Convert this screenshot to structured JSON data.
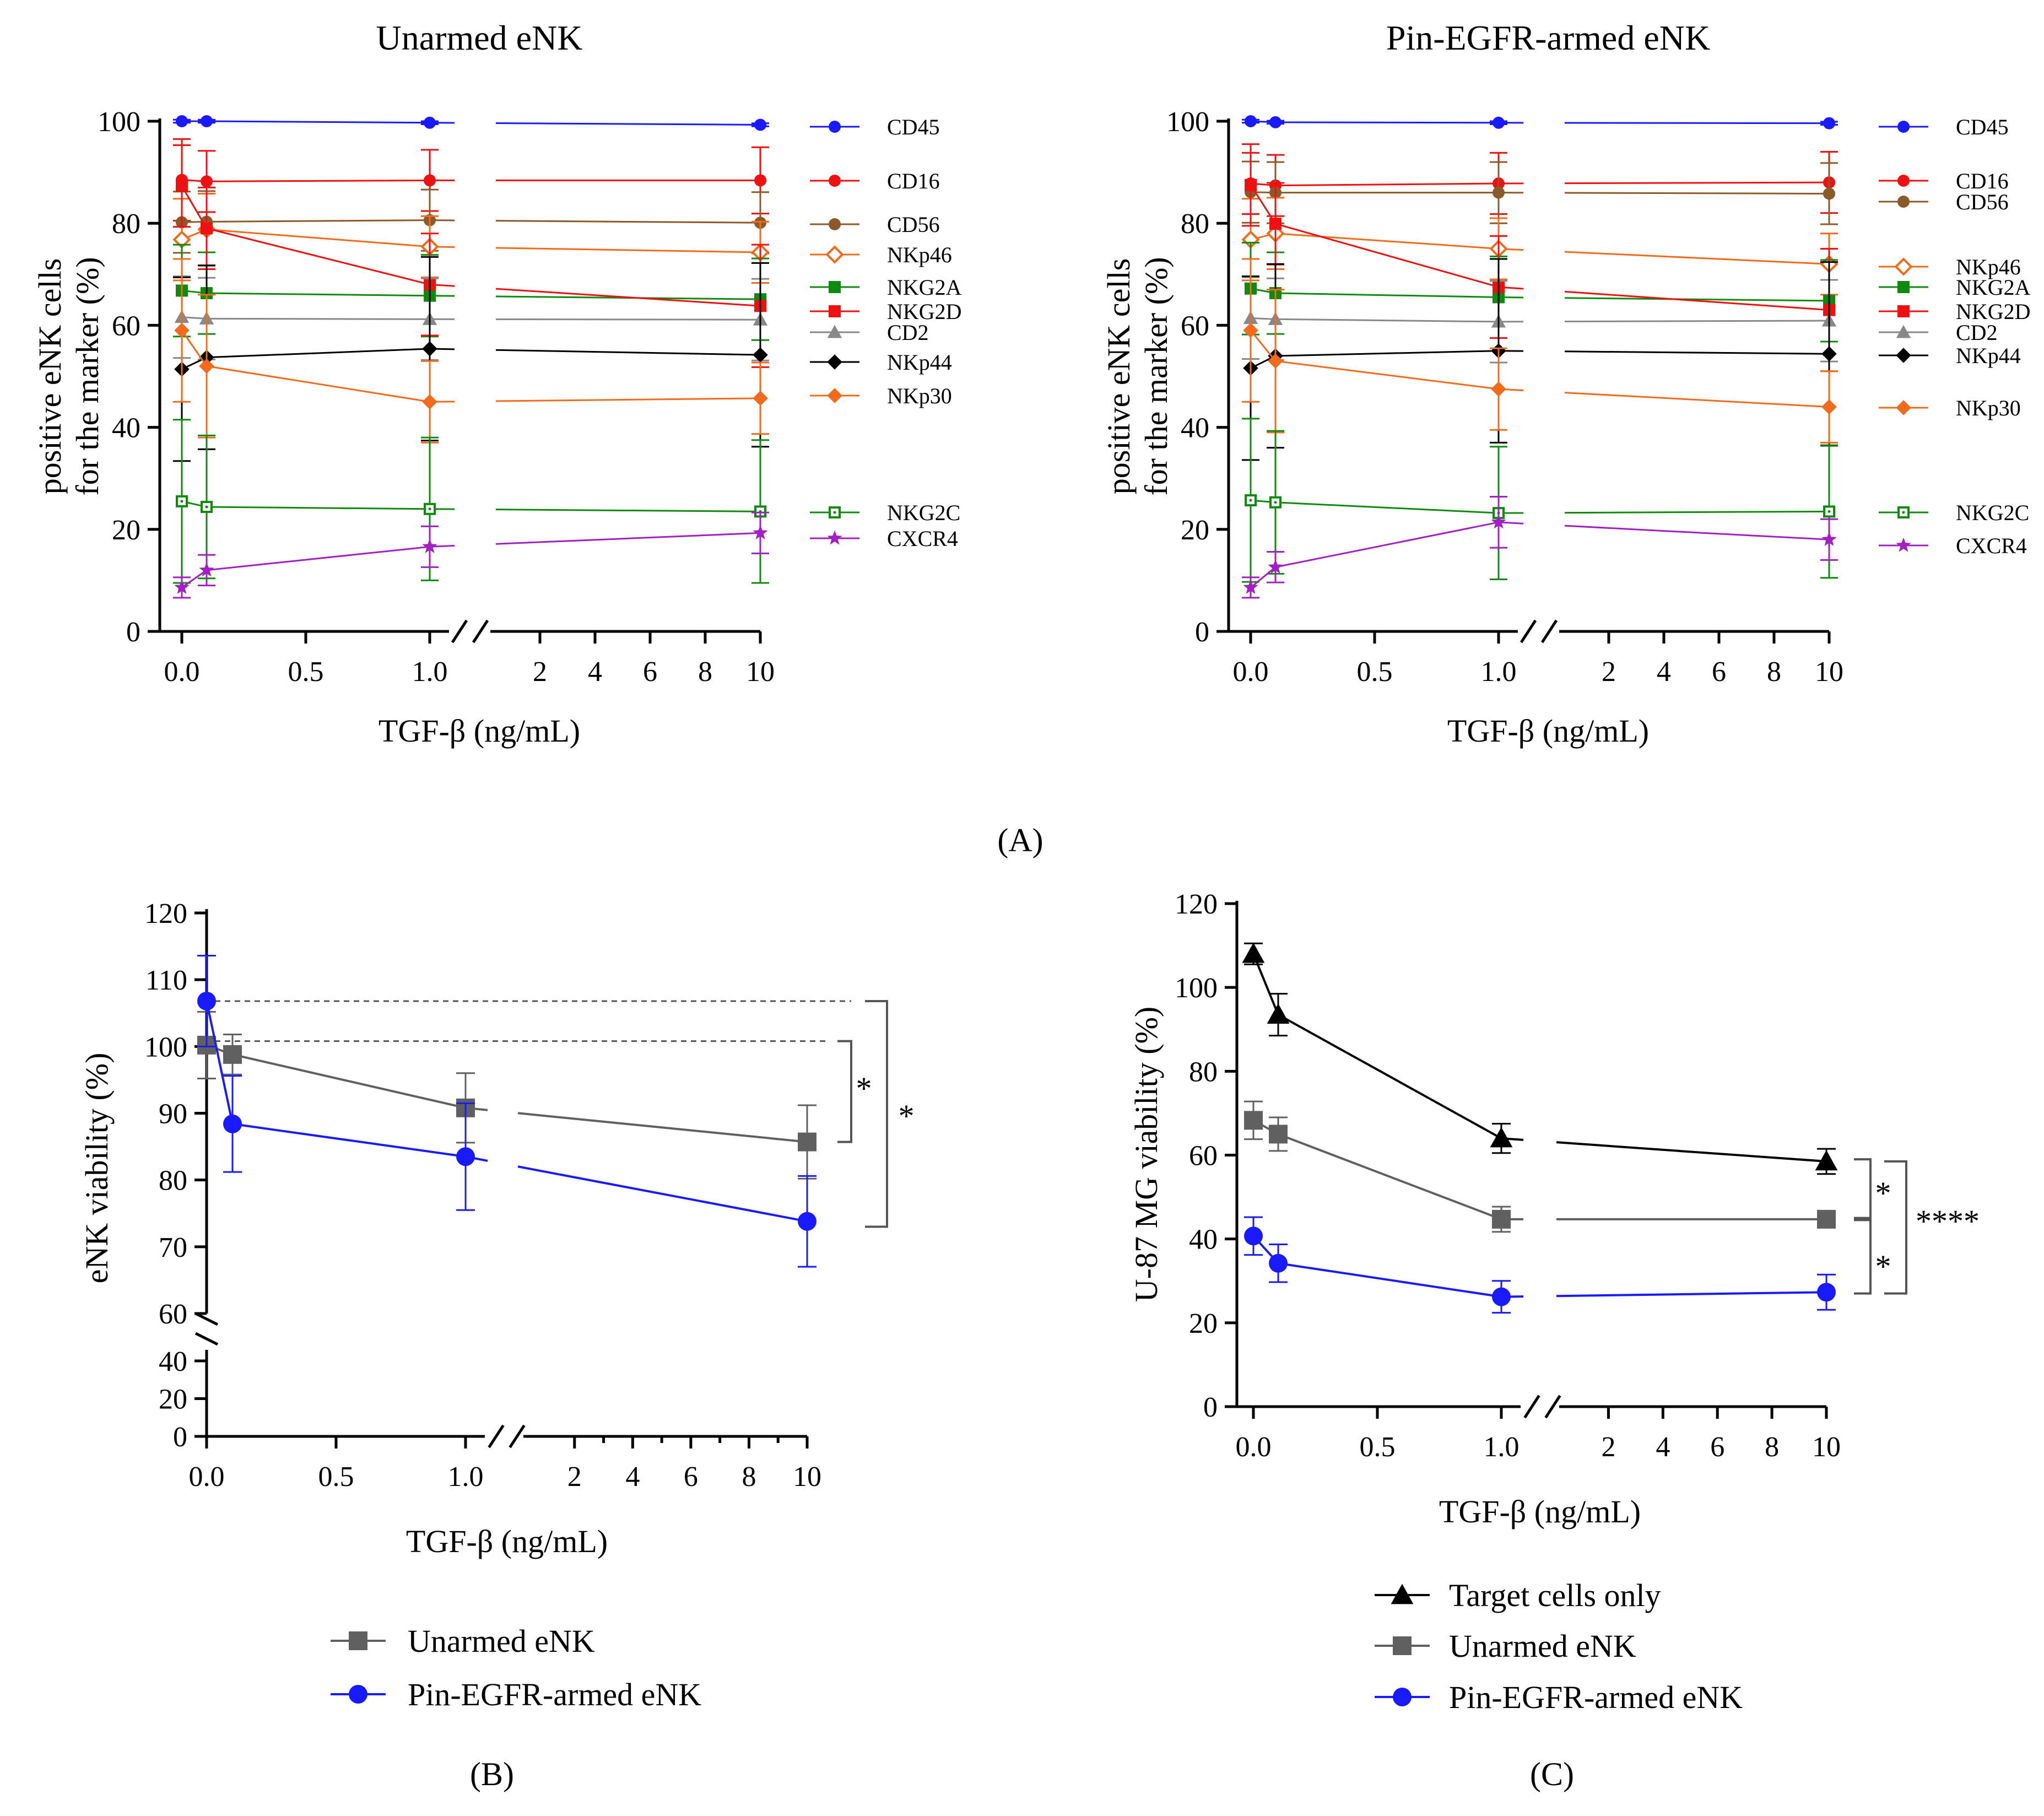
{
  "chart_data": [
    {
      "panel": "A",
      "type": "line",
      "title": "Unarmed eNK",
      "xlabel": "TGF-β (ng/mL)",
      "ylabel": [
        "positive eNK cells",
        "for the marker (%)"
      ],
      "ylim": [
        0,
        100
      ],
      "x": [
        0.0,
        0.1,
        1.0,
        10
      ],
      "x_ticks_left": [
        "0.0",
        "0.5",
        "1.0"
      ],
      "x_ticks_right": [
        "2",
        "4",
        "6",
        "8",
        "10"
      ],
      "y_ticks": [
        "0",
        "20",
        "40",
        "60",
        "80",
        "100"
      ],
      "series": [
        {
          "name": "CD45",
          "color": "#1a1aff",
          "marker": "circle",
          "values": [
            100,
            100,
            99.7,
            99.3
          ],
          "err": [
            0.3,
            0.3,
            0.3,
            0.3
          ]
        },
        {
          "name": "CD16",
          "color": "#ee1111",
          "marker": "circle",
          "values": [
            88.5,
            88.2,
            88.4,
            88.4
          ],
          "err": [
            8,
            6,
            6,
            6.5
          ]
        },
        {
          "name": "CD56",
          "color": "#8b5a2b",
          "marker": "circle",
          "values": [
            80.2,
            80.3,
            80.6,
            80.1
          ],
          "err": [
            6,
            6,
            6,
            6
          ]
        },
        {
          "name": "NKp46",
          "color": "#f26b1d",
          "marker": "diamond-open",
          "values": [
            76.8,
            78.8,
            75.4,
            74.3
          ],
          "err": [
            8,
            7,
            6,
            6
          ]
        },
        {
          "name": "NKG2A",
          "color": "#0f8a0f",
          "marker": "square",
          "values": [
            66.8,
            66.3,
            65.8,
            65.1
          ],
          "err": [
            9,
            8,
            8,
            8
          ]
        },
        {
          "name": "NKG2D",
          "color": "#ee1111",
          "marker": "square",
          "values": [
            87.3,
            79.0,
            68.0,
            63.8
          ],
          "err": [
            8,
            8,
            10,
            12
          ]
        },
        {
          "name": "CD2",
          "color": "#888888",
          "marker": "triangle",
          "values": [
            61.6,
            61.3,
            61.2,
            61.1
          ],
          "err": [
            8,
            8,
            8,
            8
          ]
        },
        {
          "name": "NKp44",
          "color": "#000000",
          "marker": "diamond",
          "values": [
            51.4,
            53.7,
            55.4,
            54.2
          ],
          "err": [
            18,
            18,
            18,
            18
          ]
        },
        {
          "name": "NKp30",
          "color": "#f26b1d",
          "marker": "diamond",
          "values": [
            59.0,
            52.0,
            45.0,
            45.7
          ],
          "err": [
            14,
            14,
            8,
            7
          ]
        },
        {
          "name": "NKG2C",
          "color": "#0f8a0f",
          "marker": "square-open",
          "values": [
            25.5,
            24.4,
            24.0,
            23.5
          ],
          "err": [
            16,
            14,
            14,
            14
          ]
        },
        {
          "name": "CXCR4",
          "color": "#a020c0",
          "marker": "star",
          "values": [
            8.6,
            12.0,
            16.6,
            19.3
          ],
          "err": [
            2,
            3,
            4,
            4
          ]
        }
      ]
    },
    {
      "panel": "A",
      "type": "line",
      "title": "Pin-EGFR-armed eNK",
      "xlabel": "TGF-β (ng/mL)",
      "ylabel": [
        "positive eNK cells",
        "for the marker (%)"
      ],
      "ylim": [
        0,
        100
      ],
      "x": [
        0.0,
        0.1,
        1.0,
        10
      ],
      "x_ticks_left": [
        "0.0",
        "0.5",
        "1.0"
      ],
      "x_ticks_right": [
        "2",
        "4",
        "6",
        "8",
        "10"
      ],
      "y_ticks": [
        "0",
        "20",
        "40",
        "60",
        "80",
        "100"
      ],
      "series": [
        {
          "name": "CD45",
          "color": "#1a1aff",
          "marker": "circle",
          "values": [
            100,
            99.8,
            99.7,
            99.6
          ],
          "err": [
            0.3,
            0.3,
            0.3,
            0.3
          ]
        },
        {
          "name": "CD16",
          "color": "#ee1111",
          "marker": "circle",
          "values": [
            87.8,
            87.4,
            87.8,
            88.0
          ],
          "err": [
            6,
            6,
            6,
            6
          ]
        },
        {
          "name": "CD56",
          "color": "#8b5a2b",
          "marker": "circle",
          "values": [
            86.1,
            86.0,
            86.0,
            85.8
          ],
          "err": [
            6,
            6,
            6,
            6
          ]
        },
        {
          "name": "NKp46",
          "color": "#f26b1d",
          "marker": "diamond-open",
          "values": [
            76.8,
            78.0,
            75.0,
            72.0
          ],
          "err": [
            8,
            7,
            6,
            6
          ]
        },
        {
          "name": "NKG2A",
          "color": "#0f8a0f",
          "marker": "square",
          "values": [
            67.2,
            66.3,
            65.5,
            64.8
          ],
          "err": [
            9,
            8,
            8,
            8
          ]
        },
        {
          "name": "NKG2D",
          "color": "#ee1111",
          "marker": "square",
          "values": [
            87.5,
            79.9,
            67.5,
            63.0
          ],
          "err": [
            8,
            8,
            10,
            12
          ]
        },
        {
          "name": "CD2",
          "color": "#888888",
          "marker": "triangle",
          "values": [
            61.4,
            61.2,
            60.7,
            60.9
          ],
          "err": [
            8,
            8,
            8,
            8
          ]
        },
        {
          "name": "NKp44",
          "color": "#000000",
          "marker": "diamond",
          "values": [
            51.6,
            54.0,
            55.0,
            54.4
          ],
          "err": [
            18,
            18,
            18,
            18
          ]
        },
        {
          "name": "NKp30",
          "color": "#f26b1d",
          "marker": "diamond",
          "values": [
            59.0,
            53.0,
            47.5,
            44.0
          ],
          "err": [
            14,
            14,
            8,
            7
          ]
        },
        {
          "name": "NKG2C",
          "color": "#0f8a0f",
          "marker": "square-open",
          "values": [
            25.7,
            25.3,
            23.2,
            23.5
          ],
          "err": [
            16,
            14,
            13,
            13
          ]
        },
        {
          "name": "CXCR4",
          "color": "#a020c0",
          "marker": "star",
          "values": [
            8.6,
            12.6,
            21.4,
            18.0
          ],
          "err": [
            2,
            3,
            5,
            4
          ]
        }
      ]
    },
    {
      "panel": "B",
      "type": "line",
      "title": "",
      "xlabel": "TGF-β (ng/mL)",
      "ylabel": "eNK viability (%)",
      "ylim": [
        0,
        120
      ],
      "y_break": [
        40,
        60
      ],
      "x": [
        0.0,
        0.1,
        1.0,
        10
      ],
      "x_ticks_left": [
        "0.0",
        "0.5",
        "1.0"
      ],
      "x_ticks_right": [
        "2",
        "4",
        "6",
        "8",
        "10"
      ],
      "y_ticks_upper": [
        "60",
        "70",
        "80",
        "90",
        "100",
        "110",
        "120"
      ],
      "y_ticks_lower": [
        "0",
        "20",
        "40"
      ],
      "series": [
        {
          "name": "Unarmed eNK",
          "color": "#606060",
          "marker": "square",
          "values": [
            100.2,
            98.8,
            90.8,
            85.7
          ],
          "err": [
            5,
            3,
            5.2,
            5.5
          ]
        },
        {
          "name": "Pin-EGFR-armed eNK",
          "color": "#1a1aff",
          "marker": "circle",
          "values": [
            106.8,
            88.4,
            83.5,
            73.8
          ],
          "err": [
            6.8,
            7.2,
            8,
            6.8
          ]
        }
      ],
      "significance": [
        "*",
        "*"
      ]
    },
    {
      "panel": "C",
      "type": "line",
      "title": "",
      "xlabel": "TGF-β (ng/mL)",
      "ylabel": "U-87 MG viability (%)",
      "ylim": [
        0,
        120
      ],
      "x": [
        0.0,
        0.1,
        1.0,
        10
      ],
      "x_ticks_left": [
        "0.0",
        "0.5",
        "1.0"
      ],
      "x_ticks_right": [
        "2",
        "4",
        "6",
        "8",
        "10"
      ],
      "y_ticks": [
        "0",
        "20",
        "40",
        "60",
        "80",
        "100",
        "120"
      ],
      "series": [
        {
          "name": "Target cells only",
          "color": "#000000",
          "marker": "triangle",
          "values": [
            108,
            93.5,
            64,
            58.5
          ],
          "err": [
            2.5,
            5,
            3.5,
            3
          ]
        },
        {
          "name": "Unarmed eNK",
          "color": "#606060",
          "marker": "square",
          "values": [
            68.3,
            65.0,
            44.7,
            44.7
          ],
          "err": [
            4.5,
            4,
            3,
            1.5
          ]
        },
        {
          "name": "Pin-EGFR-armed eNK",
          "color": "#1a1aff",
          "marker": "circle",
          "values": [
            40.7,
            34.2,
            26.2,
            27.3
          ],
          "err": [
            4.5,
            4.5,
            3.8,
            4.2
          ]
        }
      ],
      "significance": [
        "*",
        "*",
        "****"
      ]
    }
  ],
  "panel_labels": {
    "a": "(A)",
    "b": "(B)",
    "c": "(C)"
  }
}
